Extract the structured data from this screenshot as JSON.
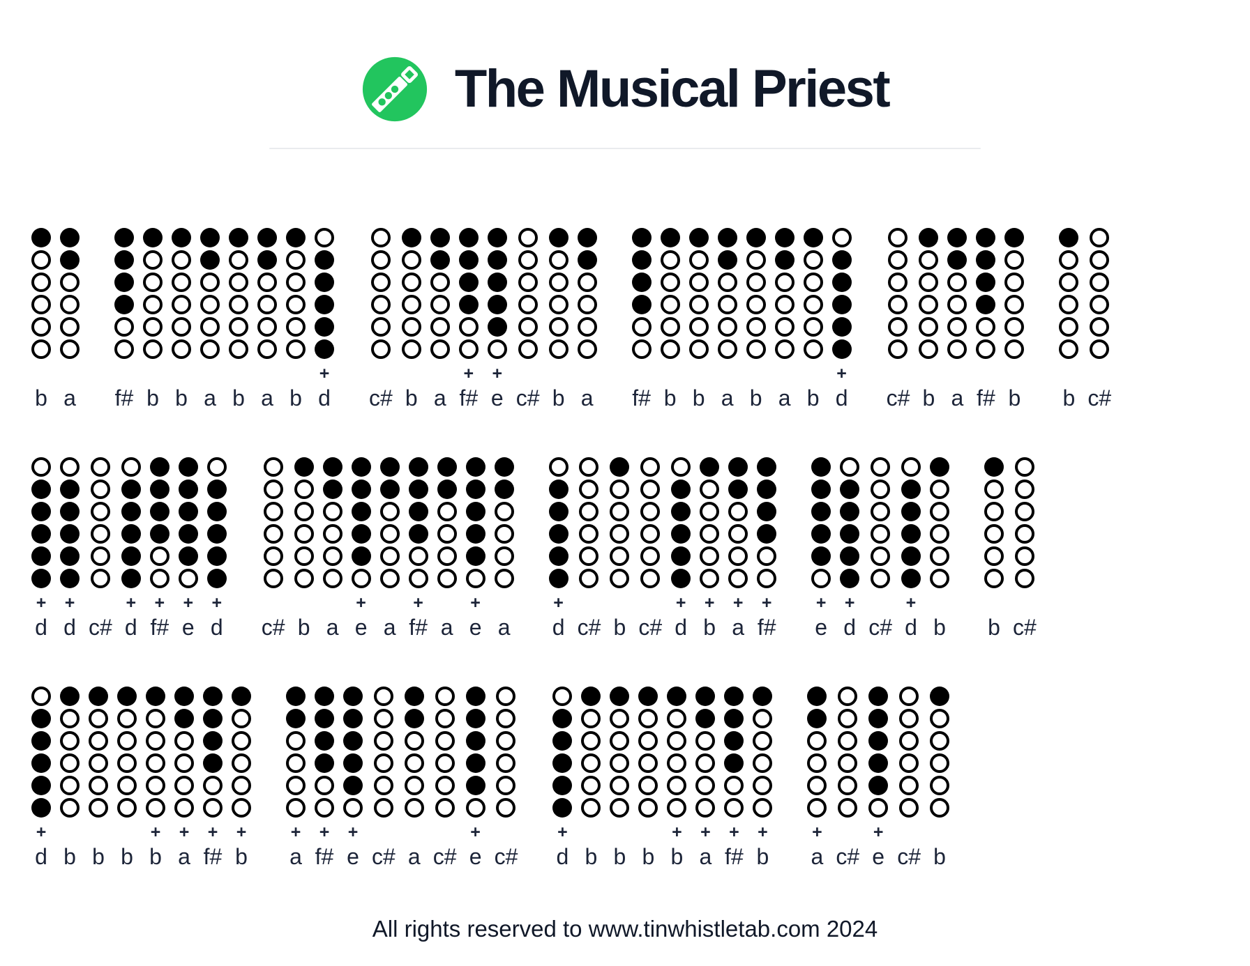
{
  "title": "The Musical Priest",
  "logo": {
    "icon": "tin-whistle-icon",
    "background_color": "#22c55e",
    "whistle_color": "#ffffff"
  },
  "colors": {
    "accent_green": "#22c55e",
    "ink": "#101828",
    "tab_text": "#1c2438",
    "hole_color": "#000000",
    "divider": "#e9ebee"
  },
  "tab": {
    "octave_marker": "+",
    "fingerings": {
      "b": [
        1,
        0,
        0,
        0,
        0,
        0
      ],
      "a": [
        1,
        1,
        0,
        0,
        0,
        0
      ],
      "f#": [
        1,
        1,
        1,
        1,
        0,
        0
      ],
      "e": [
        1,
        1,
        1,
        1,
        1,
        0
      ],
      "c#": [
        0,
        0,
        0,
        0,
        0,
        0
      ],
      "d+": [
        0,
        1,
        1,
        1,
        1,
        1
      ]
    },
    "lines": [
      {
        "groups": [
          {
            "notes": [
              "b",
              "a"
            ]
          },
          {
            "notes": [
              "f#",
              "b",
              "b",
              "a",
              "b",
              "a",
              "b",
              "d+"
            ]
          },
          {
            "notes": [
              "c#",
              "b",
              "a",
              "f#+",
              "e+",
              "c#",
              "b",
              "a"
            ]
          },
          {
            "notes": [
              "f#",
              "b",
              "b",
              "a",
              "b",
              "a",
              "b",
              "d+"
            ]
          },
          {
            "notes": [
              "c#",
              "b",
              "a",
              "f#",
              "b"
            ]
          },
          {
            "notes": [
              "b",
              "c#"
            ]
          }
        ]
      },
      {
        "groups": [
          {
            "notes": [
              "d+",
              "d+",
              "c#",
              "d+",
              "f#+",
              "e+",
              "d+"
            ]
          },
          {
            "notes": [
              "c#",
              "b",
              "a",
              "e+",
              "a",
              "f#+",
              "a",
              "e+",
              "a"
            ]
          },
          {
            "notes": [
              "d+",
              "c#",
              "b",
              "c#",
              "d+",
              "b+",
              "a+",
              "f#+"
            ]
          },
          {
            "notes": [
              "e+",
              "d+",
              "c#",
              "d+",
              "b"
            ]
          },
          {
            "notes": [
              "b",
              "c#"
            ]
          }
        ]
      },
      {
        "groups": [
          {
            "notes": [
              "d+",
              "b",
              "b",
              "b",
              "b+",
              "a+",
              "f#+",
              "b+"
            ]
          },
          {
            "notes": [
              "a+",
              "f#+",
              "e+",
              "c#",
              "a",
              "c#",
              "e+",
              "c#"
            ]
          },
          {
            "notes": [
              "d+",
              "b",
              "b",
              "b",
              "b+",
              "a+",
              "f#+",
              "b+"
            ]
          },
          {
            "notes": [
              "a+",
              "c#",
              "e+",
              "c#",
              "b"
            ]
          }
        ]
      }
    ]
  },
  "footer": "All rights reserved to www.tinwhistletab.com 2024"
}
